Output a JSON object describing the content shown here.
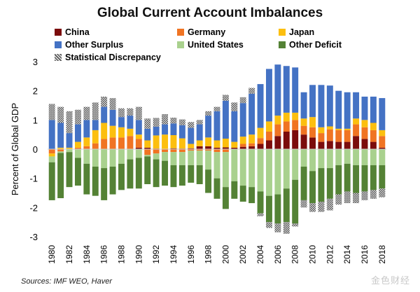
{
  "chart_data": {
    "type": "bar",
    "stacked": true,
    "title": "Global Current Account Imbalances",
    "ylabel": "Percent of Global GDP",
    "xlabel": "",
    "ylim": [
      -3,
      3
    ],
    "yticks": [
      3,
      2,
      1,
      0,
      -1,
      -2,
      -3
    ],
    "categories": [
      "1980",
      "1981",
      "1982",
      "1983",
      "1984",
      "1985",
      "1986",
      "1987",
      "1988",
      "1989",
      "1990",
      "1991",
      "1992",
      "1993",
      "1994",
      "1995",
      "1996",
      "1997",
      "1998",
      "1999",
      "2000",
      "2001",
      "2002",
      "2003",
      "2004",
      "2005",
      "2006",
      "2007",
      "2008",
      "2009",
      "2010",
      "2011",
      "2012",
      "2013",
      "2014",
      "2015",
      "2016",
      "2017",
      "2018"
    ],
    "xtick_labels": [
      "1980",
      "1982",
      "1984",
      "1986",
      "1988",
      "1990",
      "1992",
      "1994",
      "1996",
      "1998",
      "2000",
      "2002",
      "2004",
      "2006",
      "2008",
      "2010",
      "2012",
      "2014",
      "2016",
      "2018"
    ],
    "series": [
      {
        "name": "China",
        "color": "#7b0c0c",
        "values": [
          0,
          0,
          0,
          0,
          0,
          0,
          0,
          0,
          0,
          0,
          0.05,
          0.05,
          0.02,
          0,
          0.03,
          0.02,
          0.03,
          0.1,
          0.1,
          0.05,
          0.06,
          0.05,
          0.08,
          0.1,
          0.18,
          0.3,
          0.45,
          0.6,
          0.65,
          0.5,
          0.4,
          0.25,
          0.28,
          0.25,
          0.25,
          0.45,
          0.35,
          0.25,
          0.05
        ]
      },
      {
        "name": "Germany",
        "color": "#f07423",
        "values": [
          -0.15,
          -0.08,
          0,
          0.05,
          0.1,
          0.2,
          0.35,
          0.4,
          0.4,
          0.45,
          0.3,
          -0.2,
          -0.15,
          -0.1,
          -0.1,
          -0.1,
          -0.05,
          -0.05,
          -0.05,
          -0.1,
          -0.1,
          0,
          0.1,
          0.1,
          0.2,
          0.3,
          0.4,
          0.35,
          0.35,
          0.3,
          0.35,
          0.3,
          0.4,
          0.4,
          0.4,
          0.4,
          0.4,
          0.4,
          0.4
        ]
      },
      {
        "name": "Japan",
        "color": "#fcbf0f",
        "values": [
          -0.1,
          0.05,
          0.05,
          0.2,
          0.3,
          0.45,
          0.55,
          0.4,
          0.35,
          0.25,
          0.15,
          0.25,
          0.45,
          0.5,
          0.45,
          0.35,
          0.15,
          0.2,
          0.3,
          0.25,
          0.3,
          0.2,
          0.25,
          0.3,
          0.35,
          0.35,
          0.3,
          0.3,
          0.25,
          0.25,
          0.35,
          0.2,
          0.1,
          0.05,
          0.05,
          0.2,
          0.25,
          0.25,
          0.2
        ]
      },
      {
        "name": "Other Surplus",
        "color": "#4472c4",
        "values": [
          1.0,
          0.85,
          0.5,
          0.6,
          0.6,
          0.35,
          0.55,
          0.55,
          0.35,
          0.45,
          0.5,
          0.4,
          0.3,
          0.35,
          0.4,
          0.45,
          0.55,
          0.55,
          0.75,
          1.0,
          1.3,
          1.05,
          1.15,
          1.4,
          1.5,
          1.8,
          1.75,
          1.6,
          1.55,
          0.9,
          1.1,
          1.45,
          1.4,
          1.3,
          1.25,
          0.9,
          0.8,
          0.9,
          1.1
        ]
      },
      {
        "name": "United States",
        "color": "#a9d18e",
        "values": [
          -0.2,
          -0.05,
          -0.1,
          -0.3,
          -0.5,
          -0.6,
          -0.65,
          -0.6,
          -0.5,
          -0.35,
          -0.3,
          -0.05,
          -0.2,
          -0.3,
          -0.45,
          -0.45,
          -0.5,
          -0.5,
          -0.65,
          -0.9,
          -1.2,
          -1.1,
          -1.25,
          -1.3,
          -1.45,
          -1.6,
          -1.55,
          -1.35,
          -1.05,
          -0.6,
          -0.75,
          -0.65,
          -0.65,
          -0.55,
          -0.5,
          -0.55,
          -0.55,
          -0.55,
          -0.55
        ]
      },
      {
        "name": "Other Deficit",
        "color": "#548235",
        "values": [
          -1.3,
          -1.55,
          -1.2,
          -0.95,
          -1.05,
          -1.0,
          -1.1,
          -0.95,
          -0.9,
          -1.0,
          -1.05,
          -0.95,
          -0.95,
          -0.85,
          -0.75,
          -0.7,
          -0.6,
          -0.65,
          -0.8,
          -0.7,
          -0.75,
          -0.6,
          -0.55,
          -0.55,
          -0.75,
          -0.9,
          -1.0,
          -1.15,
          -1.5,
          -1.15,
          -1.1,
          -1.15,
          -1.05,
          -1.0,
          -0.95,
          -0.95,
          -0.9,
          -0.85,
          -0.8
        ]
      },
      {
        "name": "Statistical Discrepancy",
        "color": "#808080",
        "pattern": "dots",
        "values": [
          0.55,
          0.55,
          0.75,
          0.5,
          0.45,
          0.6,
          0.35,
          0.4,
          0.3,
          0.25,
          0.45,
          0.35,
          0.3,
          0.35,
          0.2,
          0.2,
          0.2,
          0.15,
          0.15,
          0.15,
          0.2,
          0.3,
          0.2,
          0.2,
          -0.1,
          -0.2,
          -0.3,
          -0.4,
          -0.1,
          -0.25,
          -0.3,
          -0.35,
          -0.4,
          -0.35,
          -0.4,
          -0.35,
          -0.3,
          -0.3,
          -0.3
        ]
      }
    ],
    "legend_position": "top",
    "grid": false
  },
  "source_note": "Sources: IMF WEO, Haver",
  "watermark": "金色财经"
}
